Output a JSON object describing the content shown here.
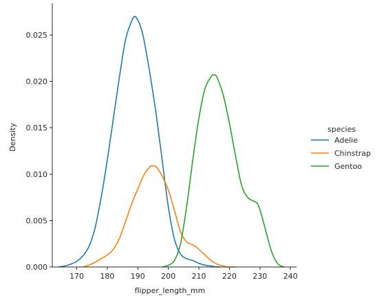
{
  "chart_data": {
    "type": "line",
    "title": "",
    "xlabel": "flipper_length_mm",
    "ylabel": "Density",
    "xlim": [
      162,
      242
    ],
    "ylim": [
      0,
      0.0284
    ],
    "xticks": [
      170,
      180,
      190,
      200,
      210,
      220,
      230,
      240
    ],
    "yticks": [
      0.0,
      0.005,
      0.01,
      0.015,
      0.02,
      0.025
    ],
    "xtick_labels": [
      "170",
      "180",
      "190",
      "200",
      "210",
      "220",
      "230",
      "240"
    ],
    "ytick_labels": [
      "0.000",
      "0.005",
      "0.010",
      "0.015",
      "0.020",
      "0.025"
    ],
    "grid": false,
    "legend": {
      "title": "species",
      "placement": "right"
    },
    "series": [
      {
        "name": "Adelie",
        "color": "#1f77b4",
        "x": [
          164,
          166,
          168,
          170,
          172,
          174,
          176,
          178,
          180,
          182,
          184,
          186,
          188,
          189,
          190,
          191,
          192,
          194,
          196,
          198,
          200,
          202,
          204,
          206,
          208,
          210,
          212,
          214,
          216,
          217
        ],
        "y": [
          0.0,
          0.0001,
          0.0003,
          0.0006,
          0.0012,
          0.0022,
          0.0042,
          0.0075,
          0.0115,
          0.016,
          0.0205,
          0.0245,
          0.0265,
          0.027,
          0.0266,
          0.0258,
          0.0245,
          0.0208,
          0.0165,
          0.0115,
          0.0065,
          0.003,
          0.0014,
          0.0009,
          0.0007,
          0.0004,
          0.0002,
          0.0001,
          0.0,
          0.0
        ]
      },
      {
        "name": "Chinstrap",
        "color": "#ff7f0e",
        "x": [
          172,
          174,
          176,
          178,
          180,
          182,
          184,
          186,
          188,
          190,
          192,
          194,
          195,
          196,
          198,
          200,
          202,
          204,
          206,
          208,
          210,
          212,
          214,
          216,
          218,
          220,
          222
        ],
        "y": [
          0.0,
          0.0002,
          0.0005,
          0.0009,
          0.0013,
          0.0019,
          0.0031,
          0.0049,
          0.0068,
          0.0084,
          0.0099,
          0.0108,
          0.0109,
          0.0108,
          0.0098,
          0.0083,
          0.0061,
          0.0038,
          0.0027,
          0.0024,
          0.0019,
          0.0013,
          0.0007,
          0.0003,
          0.0001,
          0.0,
          0.0
        ]
      },
      {
        "name": "Gentoo",
        "color": "#2ca02c",
        "x": [
          198,
          200,
          202,
          204,
          206,
          208,
          210,
          212,
          214,
          215,
          216,
          218,
          220,
          222,
          224,
          226,
          228,
          229,
          230,
          232,
          234,
          236,
          238
        ],
        "y": [
          0.0,
          0.0002,
          0.0007,
          0.0025,
          0.0065,
          0.0115,
          0.016,
          0.0192,
          0.0205,
          0.0207,
          0.0204,
          0.0185,
          0.0155,
          0.012,
          0.0088,
          0.0075,
          0.0071,
          0.0069,
          0.0062,
          0.0038,
          0.0015,
          0.0003,
          0.0
        ]
      }
    ]
  }
}
